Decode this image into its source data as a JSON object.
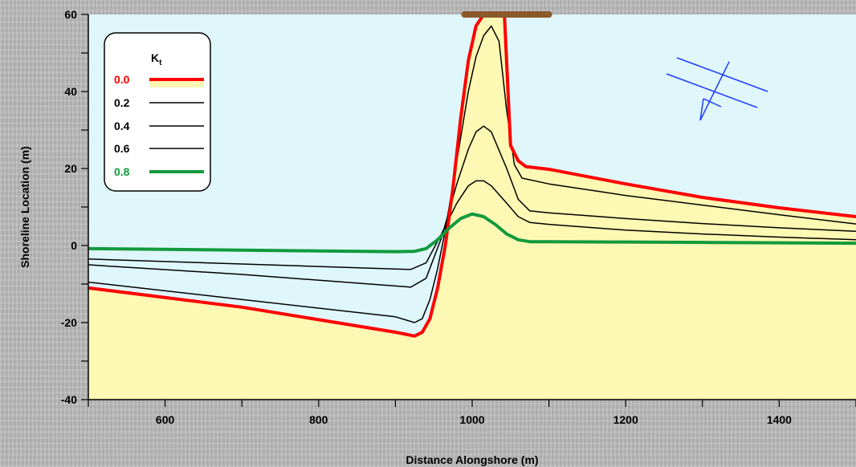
{
  "chart_data": {
    "type": "line",
    "xlabel": "Distance Alongshore (m)",
    "ylabel": "Shoreline Location (m)",
    "xlim": [
      500,
      1500
    ],
    "ylim": [
      -40,
      60
    ],
    "x_ticks": [
      600,
      800,
      1000,
      1200,
      1400
    ],
    "y_ticks": [
      60,
      40,
      20,
      0,
      -20,
      -40
    ],
    "grid": false,
    "legend": {
      "position": "top-left",
      "title_main": "K",
      "title_sub": "t",
      "entries": [
        "0.0",
        "0.2",
        "0.4",
        "0.6",
        "0.8"
      ]
    },
    "structure": {
      "x": [
        990,
        1100
      ],
      "y": 60,
      "color": "#8b5a2b"
    },
    "series": [
      {
        "name": "0.0",
        "color": "#ff0000",
        "x": [
          500,
          700,
          900,
          925,
          935,
          945,
          955,
          965,
          975,
          985,
          995,
          1005,
          1015,
          1025,
          1035,
          1042,
          1050,
          1060,
          1070,
          1100,
          1200,
          1300,
          1400,
          1500
        ],
        "y": [
          -11,
          -16,
          -22.5,
          -23.5,
          -22.5,
          -19,
          -11,
          0,
          15,
          33,
          48,
          57,
          60,
          60,
          60,
          60,
          26,
          22,
          20.5,
          19.8,
          16,
          12.5,
          9.8,
          7.5
        ]
      },
      {
        "name": "0.2",
        "color": "#000000",
        "x": [
          500,
          700,
          900,
          925,
          935,
          945,
          955,
          965,
          975,
          985,
          995,
          1005,
          1015,
          1025,
          1035,
          1045,
          1055,
          1065,
          1100,
          1200,
          1300,
          1400,
          1500
        ],
        "y": [
          -9.5,
          -14,
          -18.5,
          -20,
          -19,
          -14,
          -6,
          4,
          16,
          28,
          40,
          49,
          54.5,
          57,
          53,
          35,
          21,
          17.5,
          16,
          13,
          10.5,
          8,
          5.6
        ]
      },
      {
        "name": "0.4",
        "color": "#000000",
        "x": [
          500,
          700,
          900,
          920,
          940,
          960,
          980,
          995,
          1005,
          1015,
          1025,
          1045,
          1060,
          1075,
          1100,
          1200,
          1300,
          1400,
          1500
        ],
        "y": [
          -5,
          -7.5,
          -10.5,
          -10.8,
          -8.5,
          2,
          16,
          25,
          29.5,
          31,
          29.5,
          20,
          12,
          9,
          8.5,
          7,
          5.7,
          4.6,
          3.7
        ]
      },
      {
        "name": "0.6",
        "color": "#000000",
        "x": [
          500,
          700,
          900,
          920,
          940,
          960,
          980,
          995,
          1005,
          1015,
          1025,
          1045,
          1060,
          1075,
          1100,
          1200,
          1300,
          1400,
          1500
        ],
        "y": [
          -3.5,
          -4.8,
          -6.1,
          -6.2,
          -4.5,
          3,
          11,
          15.5,
          16.8,
          16.8,
          15.5,
          11,
          7.5,
          6,
          5.5,
          4,
          3,
          2.2,
          1.5
        ]
      },
      {
        "name": "0.8",
        "color": "#129a3c",
        "x": [
          500,
          600,
          700,
          800,
          900,
          925,
          940,
          955,
          970,
          985,
          1000,
          1015,
          1030,
          1045,
          1060,
          1075,
          1100,
          1200,
          1300,
          1400,
          1500
        ],
        "y": [
          -0.8,
          -1.0,
          -1.2,
          -1.4,
          -1.6,
          -1.5,
          -0.8,
          1.5,
          4.5,
          7,
          8.2,
          7.5,
          5.5,
          3,
          1.5,
          1,
          1,
          0.9,
          0.8,
          0.7,
          0.6
        ]
      }
    ]
  }
}
